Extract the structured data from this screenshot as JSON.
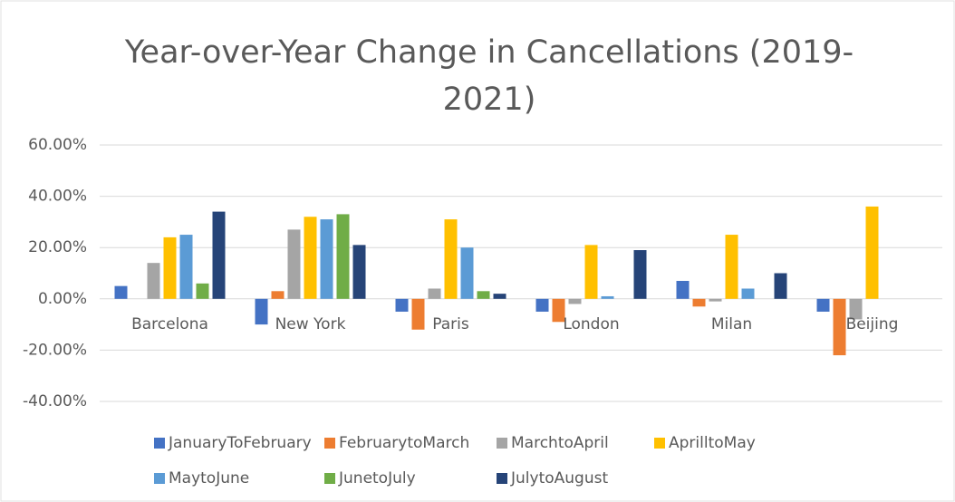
{
  "chart_data": {
    "type": "bar",
    "title": "Year-over-Year Change in Cancellations (2019-2021)",
    "categories": [
      "Barcelona",
      "New York",
      "Paris",
      "London",
      "Milan",
      "Beijing"
    ],
    "series": [
      {
        "name": "JanuaryToFebruary",
        "color": "#4472c4",
        "values": [
          5,
          -10,
          -5,
          -5,
          7,
          -5
        ]
      },
      {
        "name": "FebruarytoMarch",
        "color": "#ed7d31",
        "values": [
          0,
          3,
          -12,
          -9,
          -3,
          -22
        ]
      },
      {
        "name": "MarchtoApril",
        "color": "#a5a5a5",
        "values": [
          14,
          27,
          4,
          -2,
          -1,
          -8
        ]
      },
      {
        "name": "AprilltoMay",
        "color": "#ffc000",
        "values": [
          24,
          32,
          31,
          21,
          25,
          36
        ]
      },
      {
        "name": "MaytoJune",
        "color": "#5b9bd5",
        "values": [
          25,
          31,
          20,
          1,
          4,
          0
        ]
      },
      {
        "name": "JunetoJuly",
        "color": "#70ad47",
        "values": [
          6,
          33,
          3,
          0,
          0,
          0
        ]
      },
      {
        "name": "JulytoAugust",
        "color": "#264478",
        "values": [
          34,
          21,
          2,
          19,
          10,
          0
        ]
      }
    ],
    "ylim": [
      -40,
      60
    ],
    "yticks": [
      {
        "value": -40,
        "label": "-40.00%"
      },
      {
        "value": -20,
        "label": "-20.00%"
      },
      {
        "value": 0,
        "label": "0.00%"
      },
      {
        "value": 20,
        "label": "20.00%"
      },
      {
        "value": 40,
        "label": "40.00%"
      },
      {
        "value": 60,
        "label": "60.00%"
      }
    ],
    "grid": true
  }
}
